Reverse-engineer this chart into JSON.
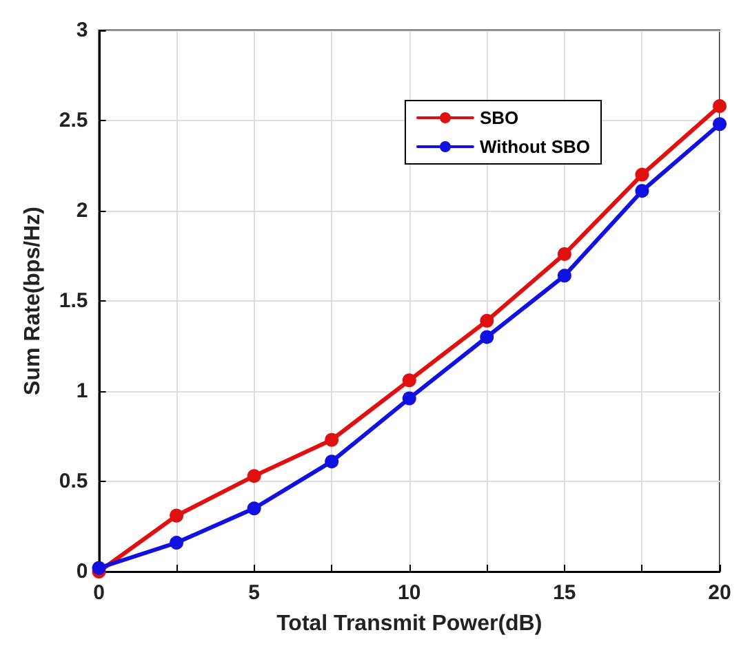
{
  "chart_data": {
    "type": "line",
    "xlabel": "Total Transmit Power(dB)",
    "ylabel": "Sum Rate(bps/Hz)",
    "x": [
      0,
      2.5,
      5,
      7.5,
      10,
      12.5,
      15,
      17.5,
      20
    ],
    "series": [
      {
        "name": "SBO",
        "color": "#e01010",
        "values": [
          0,
          0.31,
          0.53,
          0.73,
          1.06,
          1.39,
          1.76,
          2.2,
          2.58
        ]
      },
      {
        "name": "Without SBO",
        "color": "#1010e0",
        "values": [
          0.02,
          0.16,
          0.35,
          0.61,
          0.96,
          1.3,
          1.64,
          2.11,
          2.48
        ]
      }
    ],
    "xlim": [
      0,
      20
    ],
    "xticks": [
      0,
      {
        "value": 2.5,
        "label": null
      },
      5,
      {
        "value": 7.5,
        "label": null
      },
      10,
      {
        "value": 12.5,
        "label": null
      },
      15,
      {
        "value": 17.5,
        "label": null
      },
      20
    ],
    "ylim": [
      0,
      3
    ],
    "yticks": [
      0,
      0.5,
      1,
      1.5,
      2,
      2.5,
      3
    ],
    "grid": true,
    "legend": "top right",
    "marker": "circle",
    "line_style": "solid"
  }
}
